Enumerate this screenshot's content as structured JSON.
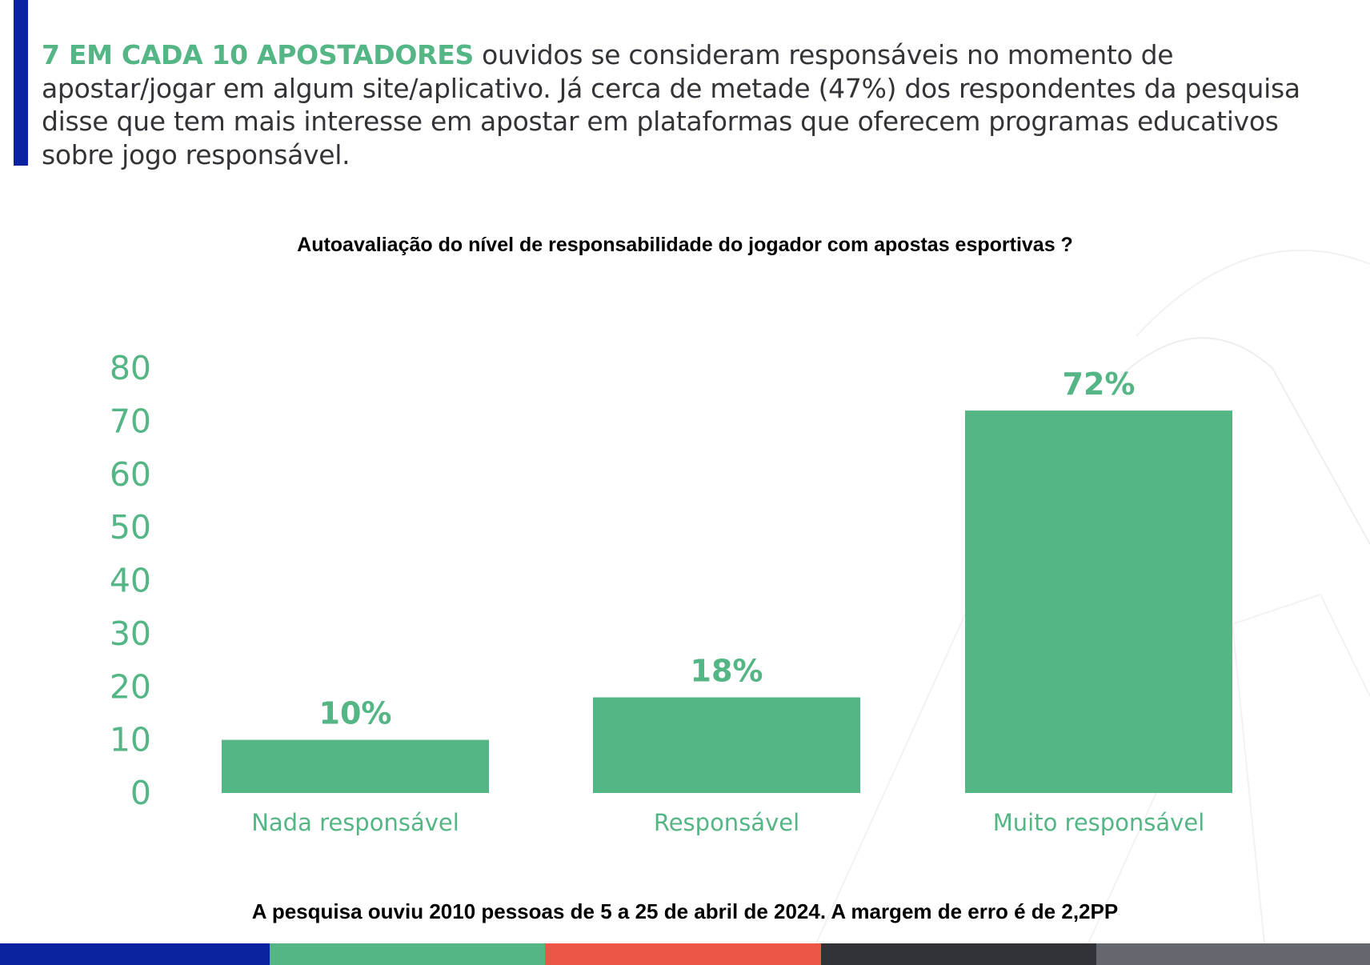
{
  "header": {
    "highlight": "7 EM CADA 10 APOSTADORES",
    "text": " ouvidos se consideram responsáveis no momento de apostar/jogar em algum site/aplicativo. Já cerca de metade (47%) dos respondentes da pesquisa disse que tem mais interesse em apostar em plataformas que oferecem programas educativos sobre jogo responsável."
  },
  "chart_data": {
    "type": "bar",
    "title": "Autoavaliação do nível de responsabilidade do jogador com apostas esportivas ?",
    "categories": [
      "Nada responsável",
      "Responsável",
      "Muito responsável"
    ],
    "values": [
      10,
      18,
      72
    ],
    "data_labels": [
      "10%",
      "18%",
      "72%"
    ],
    "ylim": [
      0,
      80
    ],
    "yticks": [
      0,
      10,
      20,
      30,
      40,
      50,
      60,
      70,
      80
    ],
    "grid": false,
    "bar_color": "#54b585",
    "label_color": "#54b585"
  },
  "footnote": "A pesquisa ouviu 2010 pessoas de 5 a 25 de abril de 2024. A margem de erro é de 2,2PP",
  "colors": {
    "accent_blue": "#0c23a0",
    "green": "#54b585",
    "stripes": [
      "#0c23a0",
      "#54b585",
      "#ec5646",
      "#323338",
      "#64676e"
    ]
  }
}
